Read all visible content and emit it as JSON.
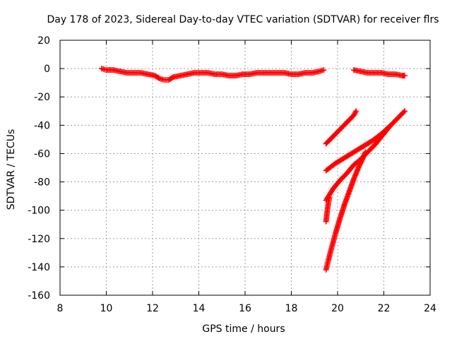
{
  "chart_data": {
    "type": "scatter",
    "title": "Day 178 of 2023, Sidereal Day-to-day VTEC variation (SDTVAR) for receiver flrs",
    "xlabel": "GPS time / hours",
    "ylabel": "SDTVAR / TECUs",
    "xlim": [
      8,
      24
    ],
    "ylim": [
      -160,
      20
    ],
    "xticks": [
      8,
      10,
      12,
      14,
      16,
      18,
      20,
      22,
      24
    ],
    "yticks": [
      20,
      0,
      -20,
      -40,
      -60,
      -80,
      -100,
      -120,
      -140,
      -160
    ],
    "grid": true,
    "marker": "plus",
    "color": "#ff0000",
    "series": [
      {
        "points": [
          [
            9.8,
            0
          ],
          [
            10.0,
            -1
          ],
          [
            10.3,
            -1
          ],
          [
            10.6,
            -2
          ],
          [
            10.9,
            -3
          ],
          [
            11.2,
            -3
          ],
          [
            11.5,
            -3
          ],
          [
            11.8,
            -4
          ],
          [
            12.1,
            -5
          ],
          [
            12.3,
            -7
          ],
          [
            12.5,
            -8
          ],
          [
            12.7,
            -8
          ],
          [
            12.9,
            -6
          ],
          [
            13.2,
            -5
          ],
          [
            13.5,
            -4
          ],
          [
            13.8,
            -3
          ],
          [
            14.1,
            -3
          ],
          [
            14.4,
            -3
          ],
          [
            14.7,
            -4
          ],
          [
            15.0,
            -4
          ],
          [
            15.3,
            -5
          ],
          [
            15.6,
            -5
          ],
          [
            15.9,
            -4
          ],
          [
            16.2,
            -4
          ],
          [
            16.5,
            -3
          ],
          [
            16.8,
            -3
          ],
          [
            17.1,
            -3
          ],
          [
            17.4,
            -3
          ],
          [
            17.7,
            -3
          ],
          [
            18.0,
            -4
          ],
          [
            18.3,
            -4
          ],
          [
            18.6,
            -3
          ],
          [
            18.9,
            -3
          ],
          [
            19.2,
            -2
          ],
          [
            19.4,
            -1
          ]
        ]
      },
      {
        "points": [
          [
            20.7,
            -1
          ],
          [
            21.0,
            -2
          ],
          [
            21.3,
            -3
          ],
          [
            21.6,
            -3
          ],
          [
            21.9,
            -3
          ],
          [
            22.2,
            -4
          ],
          [
            22.5,
            -4
          ],
          [
            22.8,
            -5
          ],
          [
            22.9,
            -5
          ]
        ]
      },
      {
        "points": [
          [
            19.5,
            -53
          ],
          [
            19.8,
            -48
          ],
          [
            20.1,
            -43
          ],
          [
            20.4,
            -38
          ],
          [
            20.7,
            -33
          ],
          [
            20.8,
            -30
          ]
        ]
      },
      {
        "points": [
          [
            19.5,
            -72
          ],
          [
            19.9,
            -67
          ],
          [
            20.3,
            -63
          ],
          [
            20.7,
            -59
          ],
          [
            21.1,
            -55
          ],
          [
            21.5,
            -51
          ],
          [
            21.9,
            -46
          ],
          [
            22.3,
            -40
          ],
          [
            22.6,
            -35
          ],
          [
            22.9,
            -30
          ]
        ]
      },
      {
        "points": [
          [
            19.5,
            -93
          ],
          [
            19.8,
            -85
          ],
          [
            20.1,
            -79
          ],
          [
            20.4,
            -74
          ],
          [
            20.7,
            -68
          ],
          [
            21.0,
            -64
          ],
          [
            21.3,
            -59
          ],
          [
            21.6,
            -54
          ],
          [
            21.9,
            -48
          ],
          [
            22.1,
            -44
          ],
          [
            22.3,
            -40
          ]
        ]
      },
      {
        "points": [
          [
            19.5,
            -108
          ],
          [
            19.55,
            -101
          ],
          [
            19.6,
            -95
          ],
          [
            19.65,
            -91
          ]
        ]
      },
      {
        "points": [
          [
            19.5,
            -142
          ],
          [
            19.7,
            -129
          ],
          [
            19.9,
            -117
          ],
          [
            20.1,
            -106
          ],
          [
            20.3,
            -96
          ],
          [
            20.5,
            -87
          ],
          [
            20.7,
            -78
          ],
          [
            20.9,
            -70
          ],
          [
            21.1,
            -63
          ],
          [
            21.2,
            -59
          ]
        ]
      }
    ]
  }
}
